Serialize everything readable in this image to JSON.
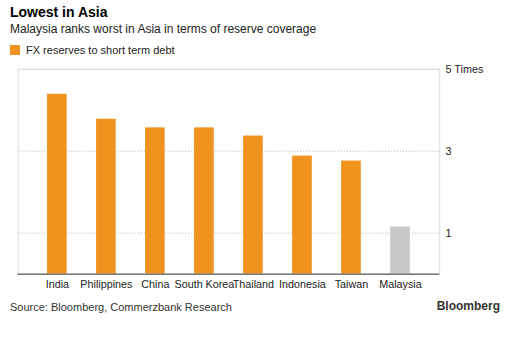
{
  "chart_data": {
    "type": "bar",
    "title": "Lowest in Asia",
    "subtitle": "Malaysia ranks worst in Asia in terms of reserve coverage",
    "categories": [
      "India",
      "Philippines",
      "China",
      "South Korea",
      "Thailand",
      "Indonesia",
      "Taiwan",
      "Malaysia"
    ],
    "series": [
      {
        "name": "FX reserves to short term debt",
        "color": "#f0921e",
        "values": [
          4.39,
          3.78,
          3.57,
          3.57,
          3.37,
          2.88,
          2.76,
          1.15
        ],
        "colors": [
          "#f0921e",
          "#f0921e",
          "#f0921e",
          "#f0921e",
          "#f0921e",
          "#f0921e",
          "#f0921e",
          "#c8c8c8"
        ]
      }
    ],
    "ylim": [
      0,
      5
    ],
    "yticks": [
      1,
      3,
      {
        "value": 5,
        "label": "5 Times"
      }
    ],
    "grid": true,
    "legend": "top-left",
    "source": "Source: Bloomberg, Commerzbank Research",
    "credit": "Bloomberg"
  }
}
